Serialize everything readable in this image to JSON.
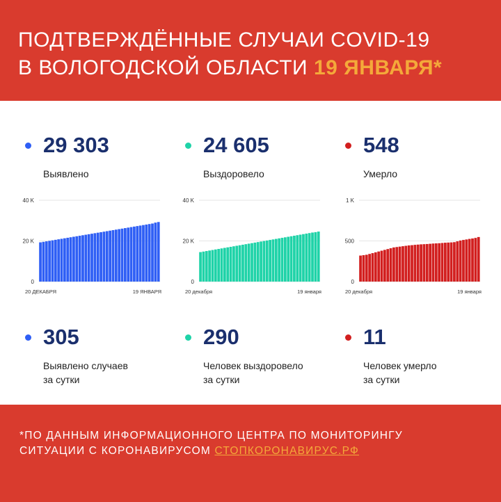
{
  "header": {
    "title_line1": "ПОДТВЕРЖДЁННЫЕ СЛУЧАИ COVID-19",
    "title_line2": "В ВОЛОГОДСКОЙ ОБЛАСТИ",
    "date": "19 ЯНВАРЯ*"
  },
  "stats": [
    {
      "value": "29 303",
      "label": "Выявлено",
      "color": "#2f5ff5"
    },
    {
      "value": "24 605",
      "label": "Выздоровело",
      "color": "#1fd3a8"
    },
    {
      "value": "548",
      "label": "Умерло",
      "color": "#d21f1f"
    }
  ],
  "daily": [
    {
      "value": "305",
      "label_line1": "Выявлено случаев",
      "label_line2": "за сутки",
      "color": "#2f5ff5"
    },
    {
      "value": "290",
      "label_line1": "Человек выздоровело",
      "label_line2": "за сутки",
      "color": "#1fd3a8"
    },
    {
      "value": "11",
      "label_line1": "Человек умерло",
      "label_line2": "за сутки",
      "color": "#d21f1f"
    }
  ],
  "chart_data": [
    {
      "type": "bar",
      "series_color": "#2f5ff5",
      "x_start_label": "20 ДЕКАБРЯ",
      "x_end_label": "19 ЯНВАРЯ",
      "ylim": [
        0,
        40000
      ],
      "y_ticks": [
        {
          "value": 0,
          "label": "0"
        },
        {
          "value": 20000,
          "label": "20 K"
        },
        {
          "value": 40000,
          "label": "40 K"
        }
      ],
      "values": [
        19300,
        19550,
        19800,
        20050,
        20300,
        20550,
        20800,
        21050,
        21300,
        21550,
        21800,
        22050,
        22300,
        22550,
        22800,
        23050,
        23300,
        23550,
        23800,
        24050,
        24300,
        24550,
        24800,
        25050,
        25300,
        25550,
        25800,
        26050,
        26300,
        26550,
        26800,
        27050,
        27300,
        27550,
        27800,
        28050,
        28300,
        28550,
        28998,
        29303
      ]
    },
    {
      "type": "bar",
      "series_color": "#1fd3a8",
      "x_start_label": "20 декабря",
      "x_end_label": "19 января",
      "ylim": [
        0,
        40000
      ],
      "y_ticks": [
        {
          "value": 0,
          "label": "0"
        },
        {
          "value": 20000,
          "label": "20 K"
        },
        {
          "value": 40000,
          "label": "40 K"
        }
      ],
      "values": [
        14500,
        14760,
        15020,
        15280,
        15540,
        15800,
        16060,
        16320,
        16580,
        16840,
        17100,
        17360,
        17620,
        17880,
        18140,
        18400,
        18660,
        18920,
        19180,
        19440,
        19700,
        19960,
        20220,
        20480,
        20740,
        21000,
        21260,
        21520,
        21780,
        22040,
        22300,
        22560,
        22820,
        23080,
        23340,
        23600,
        23860,
        24120,
        24315,
        24605
      ]
    },
    {
      "type": "bar",
      "series_color": "#d21f1f",
      "x_start_label": "20 декабря",
      "x_end_label": "19 января",
      "ylim": [
        0,
        1000
      ],
      "y_ticks": [
        {
          "value": 0,
          "label": "0"
        },
        {
          "value": 500,
          "label": "500"
        },
        {
          "value": 1000,
          "label": "1 K"
        }
      ],
      "values": [
        320,
        325,
        330,
        340,
        350,
        360,
        370,
        380,
        390,
        400,
        410,
        420,
        425,
        430,
        435,
        440,
        445,
        448,
        452,
        455,
        458,
        460,
        462,
        465,
        468,
        470,
        472,
        475,
        478,
        480,
        482,
        485,
        495,
        505,
        512,
        518,
        525,
        530,
        537,
        548
      ]
    }
  ],
  "footer": {
    "note_line1": "*ПО ДАННЫМ ИНФОРМАЦИОННОГО ЦЕНТРА ПО МОНИТОРИНГУ",
    "note_line2": "СИТУАЦИИ С КОРОНАВИРУСОМ",
    "link_text": "СТОПКОРОНАВИРУС.РФ"
  }
}
